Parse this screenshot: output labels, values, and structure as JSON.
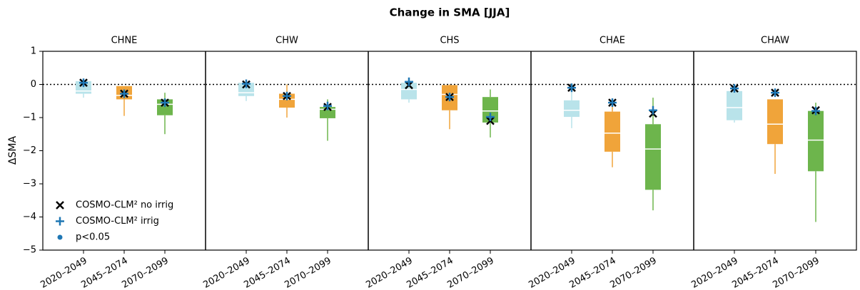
{
  "chart_data": {
    "type": "box",
    "title": "Change in SMA [JJA]",
    "ylabel": "ΔSMA",
    "ylim": [
      -5,
      1
    ],
    "yticks": [
      {
        "value": -5,
        "label": "−5"
      },
      {
        "value": -4,
        "label": "−4"
      },
      {
        "value": -3,
        "label": "−3"
      },
      {
        "value": -2,
        "label": "−2"
      },
      {
        "value": -1,
        "label": "−1"
      },
      0,
      1
    ],
    "zero_line": true,
    "categories": [
      "2020–2049",
      "2045–2074",
      "2070–2099"
    ],
    "colors": [
      "#b9e3ea",
      "#f0a43a",
      "#6db54c"
    ],
    "legend": {
      "corner": "lower left",
      "entries": [
        {
          "name": "COSMO-CLM² no irrig",
          "marker": "x",
          "color": "#000000"
        },
        {
          "name": "COSMO-CLM² irrig",
          "marker": "+",
          "color": "#1f77b4"
        },
        {
          "name": "p<0.05",
          "marker": "o",
          "color": "#1f77b4"
        }
      ]
    },
    "panels": [
      {
        "title": "CHNE",
        "boxes": [
          {
            "whislo": -0.4,
            "q1": -0.28,
            "med": -0.2,
            "q3": 0.1,
            "whishi": 0.12
          },
          {
            "whislo": -0.95,
            "q1": -0.45,
            "med": -0.33,
            "q3": -0.05,
            "whishi": -0.05
          },
          {
            "whislo": -1.5,
            "q1": -0.93,
            "med": -0.6,
            "q3": -0.45,
            "whishi": -0.25
          }
        ],
        "no_irrig": [
          0.05,
          -0.28,
          -0.55
        ],
        "irrig": [
          0.05,
          -0.28,
          -0.55
        ]
      },
      {
        "title": "CHW",
        "boxes": [
          {
            "whislo": -0.5,
            "q1": -0.35,
            "med": -0.25,
            "q3": 0.05,
            "whishi": 0.08
          },
          {
            "whislo": -1.0,
            "q1": -0.7,
            "med": -0.45,
            "q3": -0.28,
            "whishi": 0.0
          },
          {
            "whislo": -1.7,
            "q1": -1.02,
            "med": -0.75,
            "q3": -0.68,
            "whishi": -0.45
          }
        ],
        "no_irrig": [
          0.0,
          -0.35,
          -0.68
        ],
        "irrig": [
          0.02,
          -0.35,
          -0.65
        ]
      },
      {
        "title": "CHS",
        "boxes": [
          {
            "whislo": -0.55,
            "q1": -0.45,
            "med": -0.15,
            "q3": 0.05,
            "whishi": 0.1
          },
          {
            "whislo": -1.35,
            "q1": -0.78,
            "med": -0.3,
            "q3": -0.02,
            "whishi": 0.0
          },
          {
            "whislo": -1.6,
            "q1": -1.15,
            "med": -0.8,
            "q3": -0.38,
            "whishi": -0.15
          }
        ],
        "no_irrig": [
          -0.02,
          -0.38,
          -1.1
        ],
        "irrig": [
          0.08,
          -0.38,
          -0.98
        ]
      },
      {
        "title": "CHAE",
        "boxes": [
          {
            "whislo": -1.32,
            "q1": -0.98,
            "med": -0.78,
            "q3": -0.48,
            "whishi": -0.1
          },
          {
            "whislo": -2.5,
            "q1": -2.03,
            "med": -1.47,
            "q3": -0.82,
            "whishi": -0.5
          },
          {
            "whislo": -3.8,
            "q1": -3.18,
            "med": -1.95,
            "q3": -1.2,
            "whishi": -0.4
          }
        ],
        "no_irrig": [
          -0.1,
          -0.55,
          -0.88
        ],
        "irrig": [
          -0.1,
          -0.55,
          -0.78
        ]
      },
      {
        "title": "CHAW",
        "boxes": [
          {
            "whislo": -1.15,
            "q1": -1.08,
            "med": -0.7,
            "q3": -0.2,
            "whishi": -0.1
          },
          {
            "whislo": -2.7,
            "q1": -1.8,
            "med": -1.2,
            "q3": -0.45,
            "whishi": -0.45
          },
          {
            "whislo": -4.15,
            "q1": -2.62,
            "med": -1.68,
            "q3": -0.8,
            "whishi": -0.55
          }
        ],
        "no_irrig": [
          -0.12,
          -0.25,
          -0.78
        ],
        "irrig": [
          -0.12,
          -0.25,
          -0.8
        ]
      }
    ]
  }
}
